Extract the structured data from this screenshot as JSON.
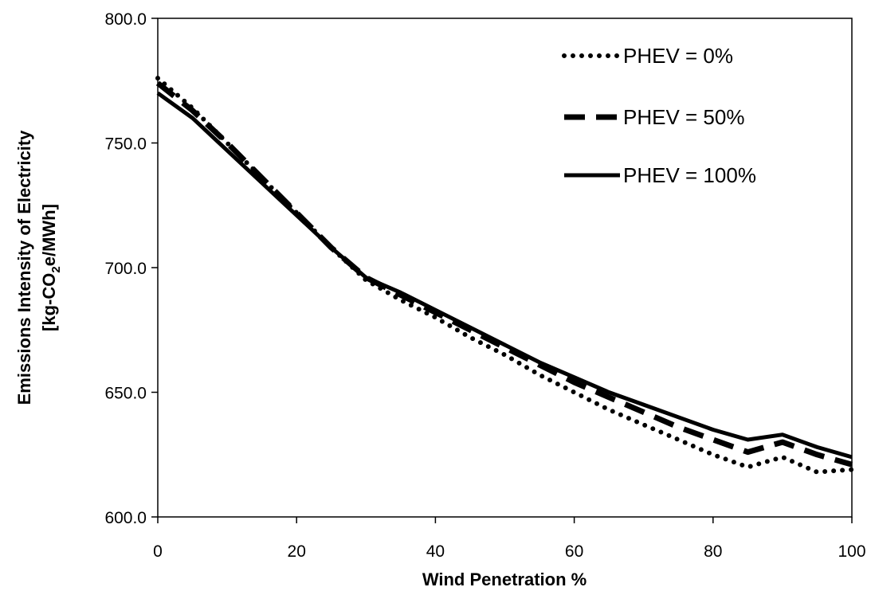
{
  "chart_data": {
    "type": "line",
    "xlabel": "Wind Penetration %",
    "ylabel_line1": "Emissions Intensity of Electricity",
    "ylabel_line2_prefix": "[kg-CO",
    "ylabel_line2_sub": "2",
    "ylabel_line2_suffix": "e/MWh]",
    "xlim": [
      0,
      100
    ],
    "ylim": [
      600,
      800
    ],
    "xticks": [
      0,
      20,
      40,
      60,
      80,
      100
    ],
    "xtick_labels": [
      "0",
      "20",
      "40",
      "60",
      "80",
      "100"
    ],
    "yticks": [
      600,
      650,
      700,
      750,
      800
    ],
    "ytick_labels": [
      "600.0",
      "650.0",
      "700.0",
      "750.0",
      "800.0"
    ],
    "grid": false,
    "legend_position": "top-right",
    "series": [
      {
        "name": "PHEV = 0%",
        "style": "dotted",
        "color": "#000000",
        "x": [
          0,
          5,
          10,
          15,
          20,
          25,
          30,
          35,
          40,
          45,
          50,
          55,
          60,
          65,
          70,
          75,
          80,
          85,
          90,
          95,
          100
        ],
        "y": [
          776,
          764,
          750,
          736,
          722,
          708,
          695,
          687,
          680,
          672,
          665,
          657,
          650,
          643,
          637,
          631,
          625,
          620,
          624,
          618,
          619
        ]
      },
      {
        "name": "PHEV = 50%",
        "style": "dashed",
        "color": "#000000",
        "x": [
          0,
          5,
          10,
          15,
          20,
          25,
          30,
          35,
          40,
          45,
          50,
          55,
          60,
          65,
          70,
          75,
          80,
          85,
          90,
          95,
          100
        ],
        "y": [
          774,
          763,
          750,
          736,
          722,
          708,
          696,
          689,
          682,
          675,
          668,
          661,
          654,
          648,
          642,
          636,
          631,
          626,
          630,
          625,
          621
        ]
      },
      {
        "name": "PHEV = 100%",
        "style": "solid",
        "color": "#000000",
        "x": [
          0,
          5,
          10,
          15,
          20,
          25,
          30,
          35,
          40,
          45,
          50,
          55,
          60,
          65,
          70,
          75,
          80,
          85,
          90,
          95,
          100
        ],
        "y": [
          770,
          760,
          747,
          734,
          721,
          708,
          696,
          690,
          683,
          676,
          669,
          662,
          656,
          650,
          645,
          640,
          635,
          631,
          633,
          628,
          624
        ]
      }
    ]
  }
}
